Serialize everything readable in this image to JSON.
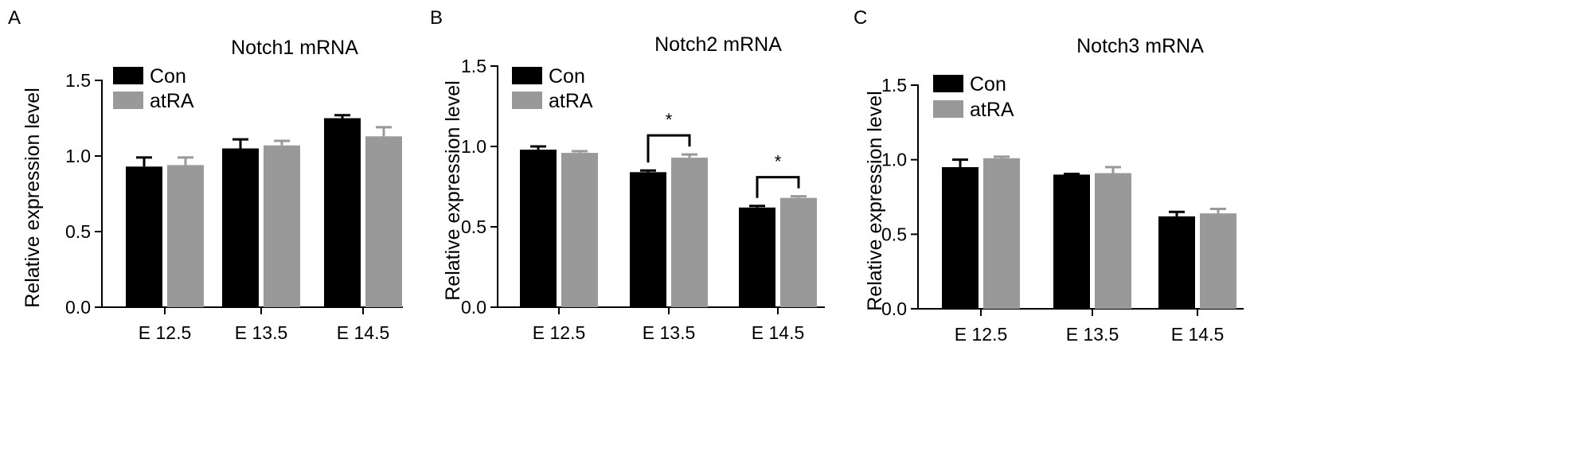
{
  "chart_data": [
    {
      "panel": "A",
      "type": "bar",
      "title": "Notch1 mRNA",
      "ylabel": "Relative expression level",
      "xlabel": "",
      "ylim": [
        0,
        1.5
      ],
      "yticks": [
        "0.0",
        "0.5",
        "1.0",
        "1.5"
      ],
      "categories": [
        "E 12.5",
        "E 13.5",
        "E 14.5"
      ],
      "series": [
        {
          "name": "Con",
          "color": "#000000",
          "values": [
            0.93,
            1.05,
            1.25
          ],
          "errors": [
            0.06,
            0.06,
            0.02
          ]
        },
        {
          "name": "atRA",
          "color": "#999999",
          "values": [
            0.94,
            1.07,
            1.13
          ],
          "errors": [
            0.05,
            0.03,
            0.06
          ]
        }
      ],
      "legend": "top-left",
      "significance": []
    },
    {
      "panel": "B",
      "type": "bar",
      "title": "Notch2 mRNA",
      "ylabel": "Relative expression level",
      "xlabel": "",
      "ylim": [
        0,
        1.5
      ],
      "yticks": [
        "0.0",
        "0.5",
        "1.0",
        "1.5"
      ],
      "categories": [
        "E 12.5",
        "E 13.5",
        "E 14.5"
      ],
      "series": [
        {
          "name": "Con",
          "color": "#000000",
          "values": [
            0.98,
            0.84,
            0.62
          ],
          "errors": [
            0.02,
            0.01,
            0.01
          ]
        },
        {
          "name": "atRA",
          "color": "#999999",
          "values": [
            0.96,
            0.93,
            0.68
          ],
          "errors": [
            0.01,
            0.02,
            0.01
          ]
        }
      ],
      "legend": "top-left",
      "significance": [
        {
          "category": 1,
          "label": "*"
        },
        {
          "category": 2,
          "label": "*"
        }
      ]
    },
    {
      "panel": "C",
      "type": "bar",
      "title": "Notch3 mRNA",
      "ylabel": "Relative expression level",
      "xlabel": "",
      "ylim": [
        0,
        1.5
      ],
      "yticks": [
        "0.0",
        "0.5",
        "1.0",
        "1.5"
      ],
      "categories": [
        "E 12.5",
        "E 13.5",
        "E 14.5"
      ],
      "series": [
        {
          "name": "Con",
          "color": "#000000",
          "values": [
            0.95,
            0.9,
            0.62
          ],
          "errors": [
            0.05,
            0.005,
            0.03
          ]
        },
        {
          "name": "atRA",
          "color": "#999999",
          "values": [
            1.01,
            0.91,
            0.64
          ],
          "errors": [
            0.01,
            0.04,
            0.03
          ]
        }
      ],
      "legend": "top-left",
      "significance": []
    }
  ]
}
